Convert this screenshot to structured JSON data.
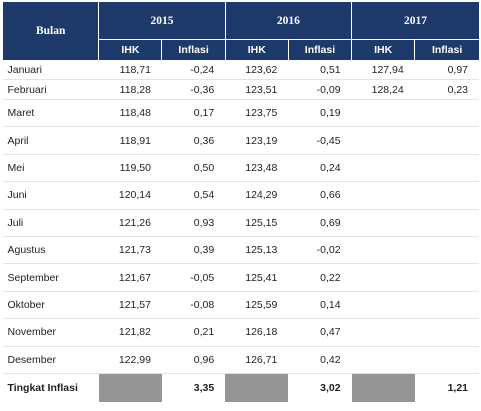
{
  "header": {
    "month_label": "Bulan",
    "years": [
      "2015",
      "2016",
      "2017"
    ],
    "ihk_label": "IHK",
    "inflasi_label": "Inflasi"
  },
  "rows": [
    {
      "month": "Januari",
      "ihk2015": "118,71",
      "inf2015": "-0,24",
      "ihk2016": "123,62",
      "inf2016": "0,51",
      "ihk2017": "127,94",
      "inf2017": "0,97"
    },
    {
      "month": "Februari",
      "ihk2015": "118,28",
      "inf2015": "-0,36",
      "ihk2016": "123,51",
      "inf2016": "-0,09",
      "ihk2017": "128,24",
      "inf2017": "0,23"
    },
    {
      "month": "Maret",
      "ihk2015": "118,48",
      "inf2015": "0,17",
      "ihk2016": "123,75",
      "inf2016": "0,19",
      "ihk2017": "",
      "inf2017": ""
    },
    {
      "month": "April",
      "ihk2015": "118,91",
      "inf2015": "0,36",
      "ihk2016": "123,19",
      "inf2016": "-0,45",
      "ihk2017": "",
      "inf2017": ""
    },
    {
      "month": "Mei",
      "ihk2015": "119,50",
      "inf2015": "0,50",
      "ihk2016": "123,48",
      "inf2016": "0,24",
      "ihk2017": "",
      "inf2017": ""
    },
    {
      "month": "Juni",
      "ihk2015": "120,14",
      "inf2015": "0,54",
      "ihk2016": "124,29",
      "inf2016": "0,66",
      "ihk2017": "",
      "inf2017": ""
    },
    {
      "month": "Juli",
      "ihk2015": "121,26",
      "inf2015": "0,93",
      "ihk2016": "125,15",
      "inf2016": "0,69",
      "ihk2017": "",
      "inf2017": ""
    },
    {
      "month": "Agustus",
      "ihk2015": "121,73",
      "inf2015": "0,39",
      "ihk2016": "125,13",
      "inf2016": "-0,02",
      "ihk2017": "",
      "inf2017": ""
    },
    {
      "month": "September",
      "ihk2015": "121,67",
      "inf2015": "-0,05",
      "ihk2016": "125,41",
      "inf2016": "0,22",
      "ihk2017": "",
      "inf2017": ""
    },
    {
      "month": "Oktober",
      "ihk2015": "121,57",
      "inf2015": "-0,08",
      "ihk2016": "125,59",
      "inf2016": "0,14",
      "ihk2017": "",
      "inf2017": ""
    },
    {
      "month": "November",
      "ihk2015": "121,82",
      "inf2015": "0,21",
      "ihk2016": "126,18",
      "inf2016": "0,47",
      "ihk2017": "",
      "inf2017": ""
    },
    {
      "month": "Desember",
      "ihk2015": "122,99",
      "inf2015": "0,96",
      "ihk2016": "126,71",
      "inf2016": "0,42",
      "ihk2017": "",
      "inf2017": ""
    }
  ],
  "total": {
    "label": "Tingkat Inflasi",
    "inf2015": "3,35",
    "inf2016": "3,02",
    "inf2017": "1,21"
  },
  "colors": {
    "header_bg": "#1e3a6b",
    "header_text": "#ffffff",
    "total_shade": "#959595"
  }
}
